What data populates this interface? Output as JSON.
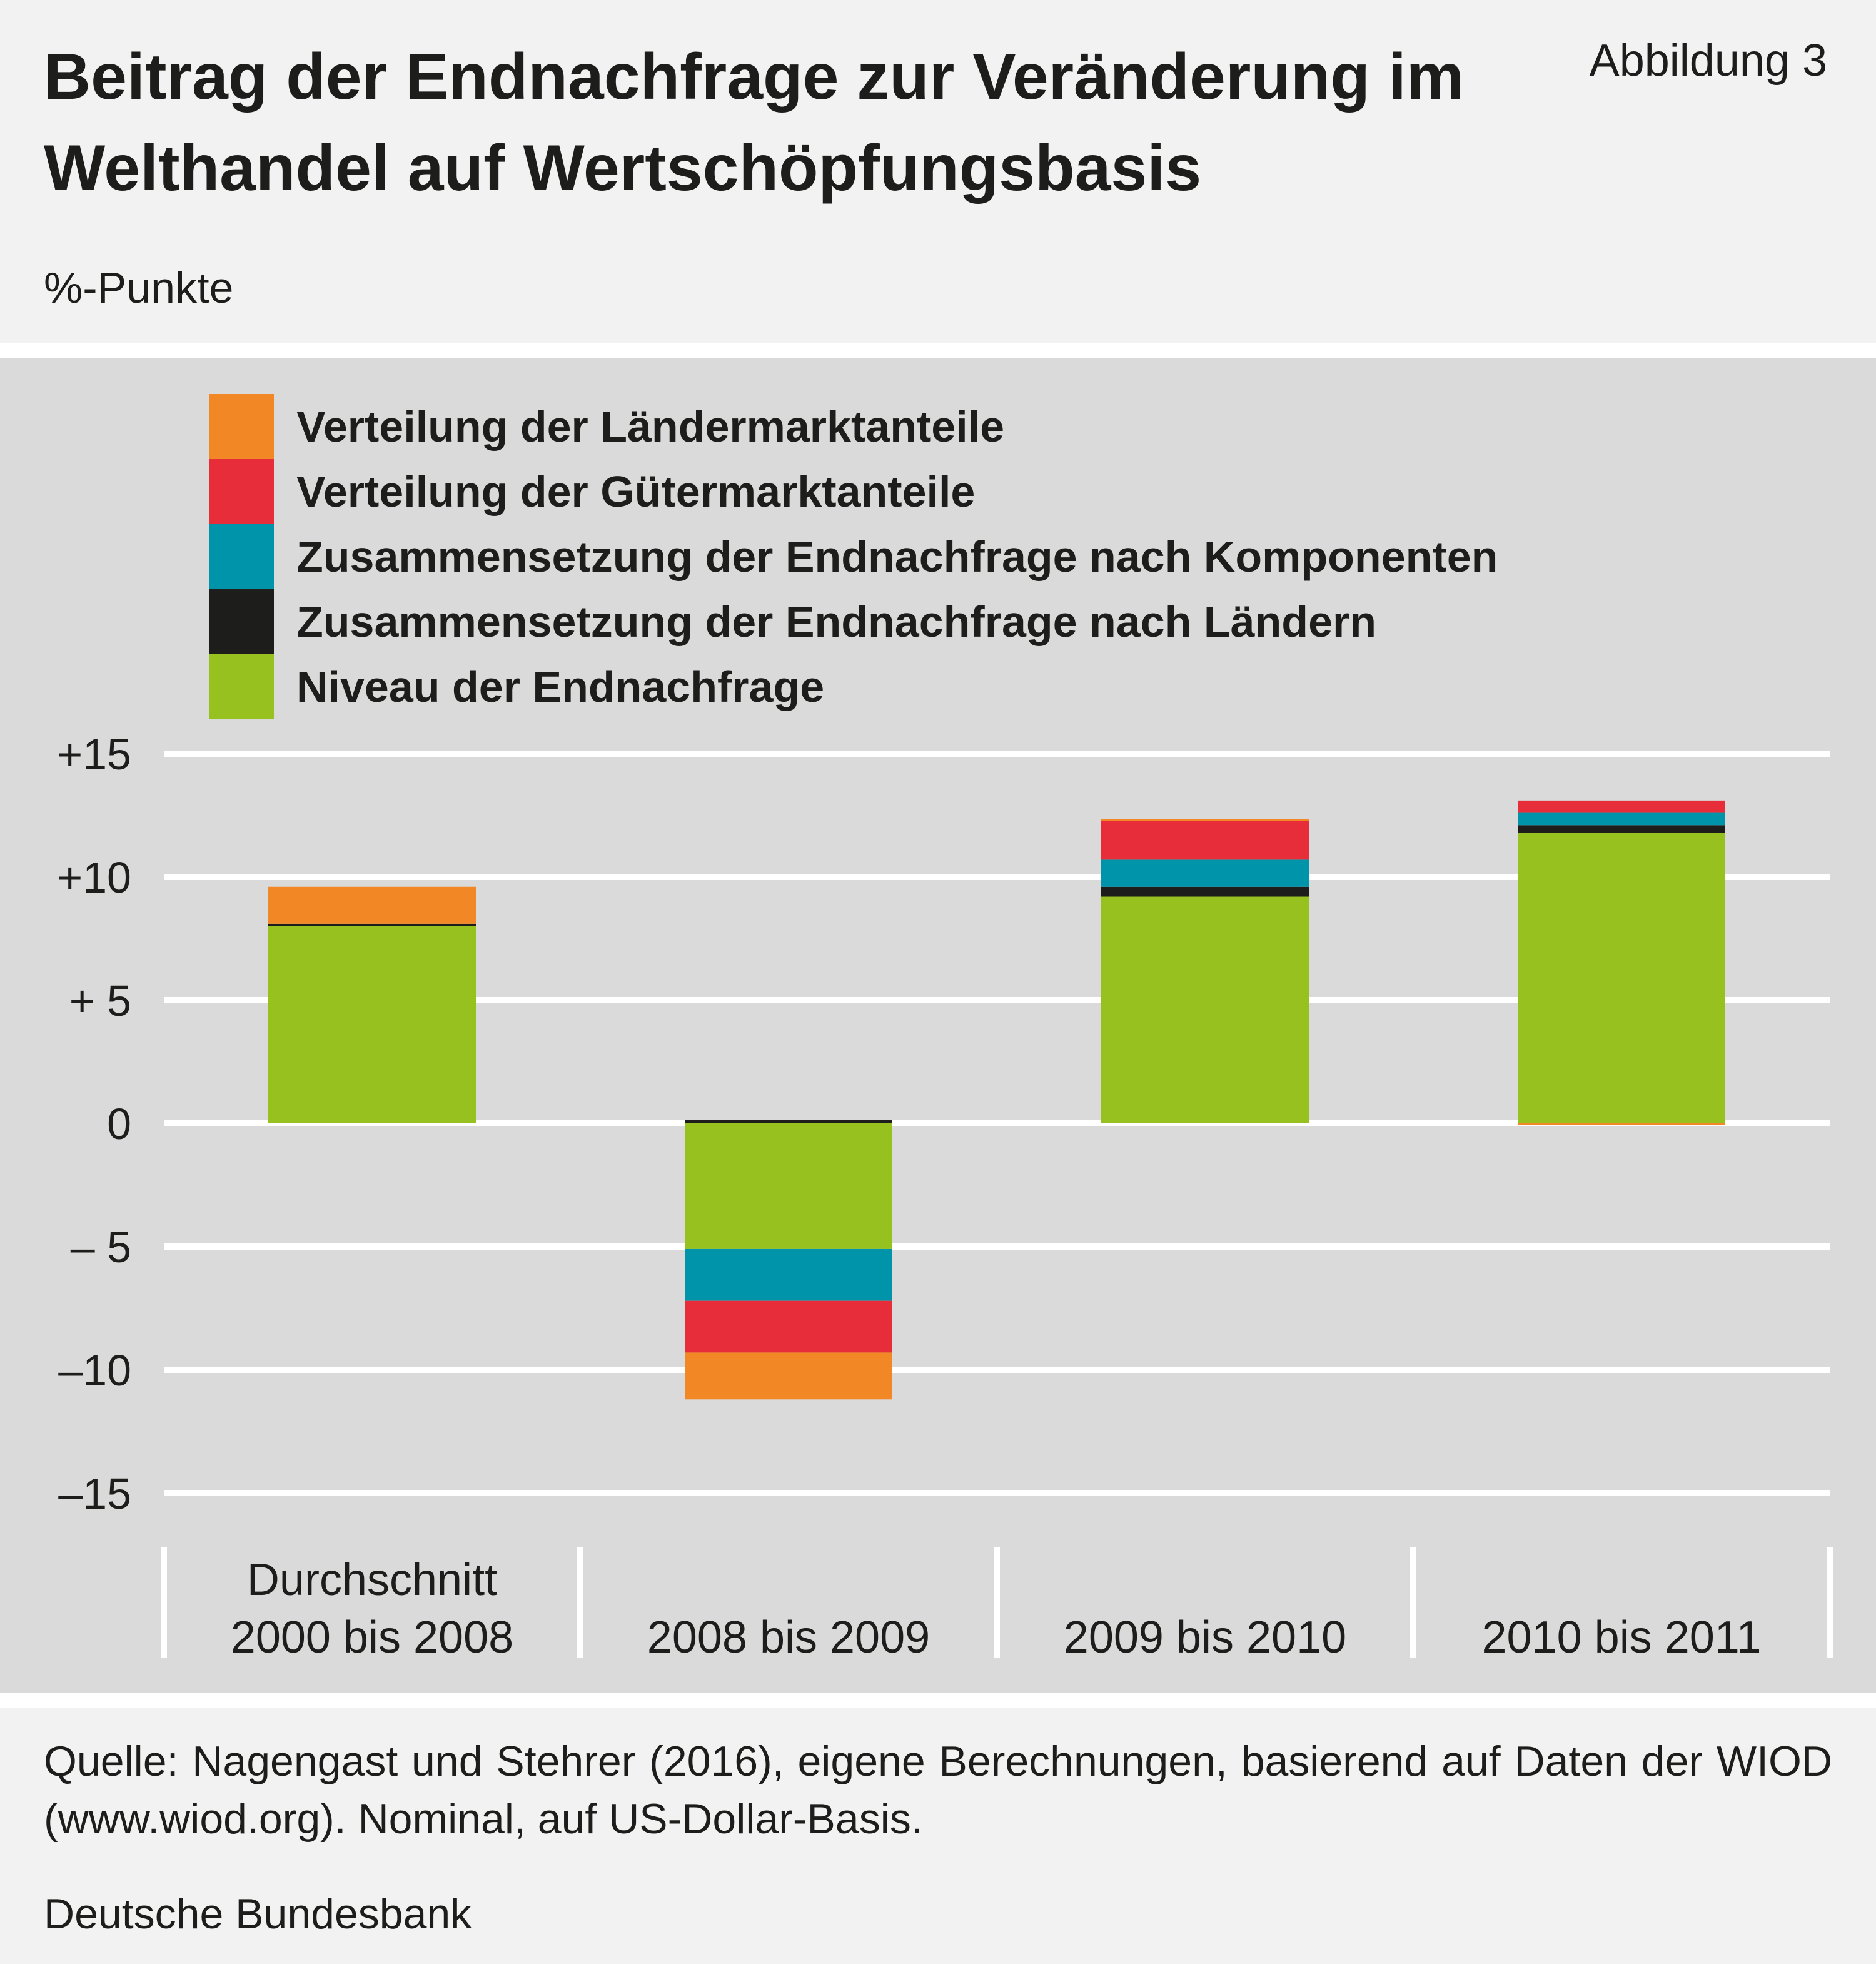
{
  "header": {
    "title": "Beitrag der Endnachfrage zur Veränderung im Welthandel auf Wertschöpfungsbasis",
    "figure_label": "Abbildung 3",
    "unit": "%-Punkte"
  },
  "chart_data": {
    "type": "bar",
    "stacked": true,
    "title": "Beitrag der Endnachfrage zur Veränderung im Welthandel auf Wertschöpfungsbasis",
    "ylabel": "%-Punkte",
    "ylim": [
      -15,
      15
    ],
    "yticks": [
      15,
      10,
      5,
      0,
      -5,
      -10,
      -15
    ],
    "ytick_labels": [
      "+15",
      "+10",
      "+  5",
      "0",
      "–  5",
      "–10",
      "–15"
    ],
    "grid": true,
    "legend_position": "top-left",
    "categories": [
      [
        "Durchschnitt",
        "2000 bis 2008"
      ],
      [
        "2008 bis 2009"
      ],
      [
        "2009 bis 2010"
      ],
      [
        "2010 bis 2011"
      ]
    ],
    "series": [
      {
        "name": "Niveau der Endnachfrage",
        "color": "#97c11f",
        "values": [
          8.0,
          -5.1,
          9.2,
          11.8
        ]
      },
      {
        "name": "Zusammensetzung der Endnachfrage nach Ländern",
        "color": "#1d1d1b",
        "values": [
          0.1,
          0.15,
          0.4,
          0.3
        ]
      },
      {
        "name": "Zusammensetzung der Endnachfrage nach Komponenten",
        "color": "#0094ab",
        "values": [
          0.0,
          -2.1,
          1.1,
          0.5
        ]
      },
      {
        "name": "Verteilung der Gütermarktanteile",
        "color": "#e62d39",
        "values": [
          0.0,
          -2.1,
          1.6,
          0.5
        ]
      },
      {
        "name": "Verteilung der Ländermarktanteile",
        "color": "#f18825",
        "values": [
          1.5,
          -1.9,
          0.05,
          -0.05
        ]
      }
    ],
    "legend_order": [
      4,
      3,
      2,
      1,
      0
    ]
  },
  "footer": {
    "source": "Quelle: Nagengast und Stehrer (2016), eigene Berechnungen, basierend auf Daten der WIOD (www.wiod.org). Nominal, auf US-Dollar-Basis.",
    "publisher": "Deutsche Bundesbank"
  }
}
